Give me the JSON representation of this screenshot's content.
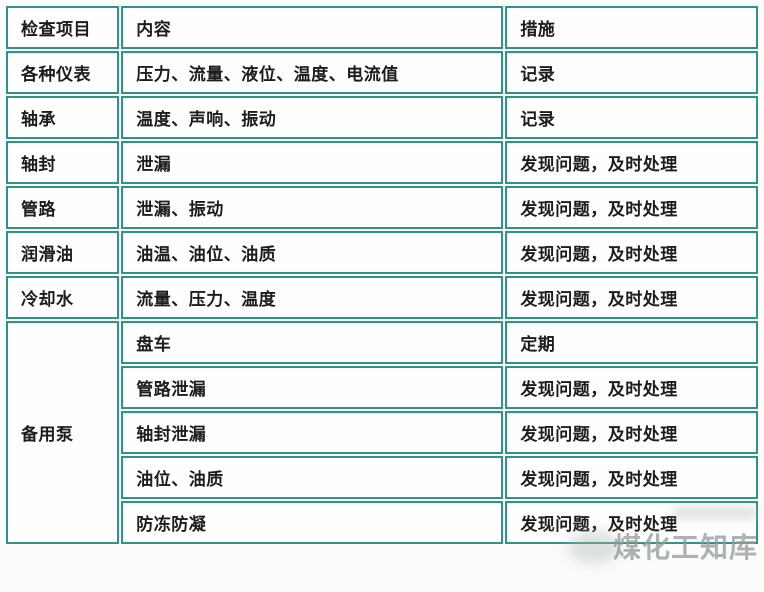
{
  "page": {
    "background_color": "#fbfbfa",
    "table_border_color": "#2E9488",
    "table_text_color": "#1d1d1d"
  },
  "table": {
    "header": {
      "item": "检查项目",
      "content": "内容",
      "measure": "措施"
    },
    "rows": [
      {
        "item": "各种仪表",
        "content": "压力、流量、液位、温度、电流值",
        "measure": "记录"
      },
      {
        "item": "轴承",
        "content": "温度、声响、振动",
        "measure": "记录"
      },
      {
        "item": "轴封",
        "content": "泄漏",
        "measure": "发现问题，及时处理"
      },
      {
        "item": "管路",
        "content": "泄漏、振动",
        "measure": "发现问题，及时处理"
      },
      {
        "item": "润滑油",
        "content": "油温、油位、油质",
        "measure": "发现问题，及时处理"
      },
      {
        "item": "冷却水",
        "content": "流量、压力、温度",
        "measure": "发现问题，及时处理"
      },
      {
        "item": "备用泵",
        "item_rowspan": 5,
        "content": "盘车",
        "measure": "定期"
      },
      {
        "content": "管路泄漏",
        "measure": "发现问题，及时处理"
      },
      {
        "content": "轴封泄漏",
        "measure": "发现问题，及时处理"
      },
      {
        "content": "油位、油质",
        "measure": "发现问题，及时处理"
      },
      {
        "content": "防冻防凝",
        "measure": "发现问题，及时处理"
      }
    ]
  },
  "watermark": {
    "text": "煤化工知库",
    "color": "#95999b"
  }
}
